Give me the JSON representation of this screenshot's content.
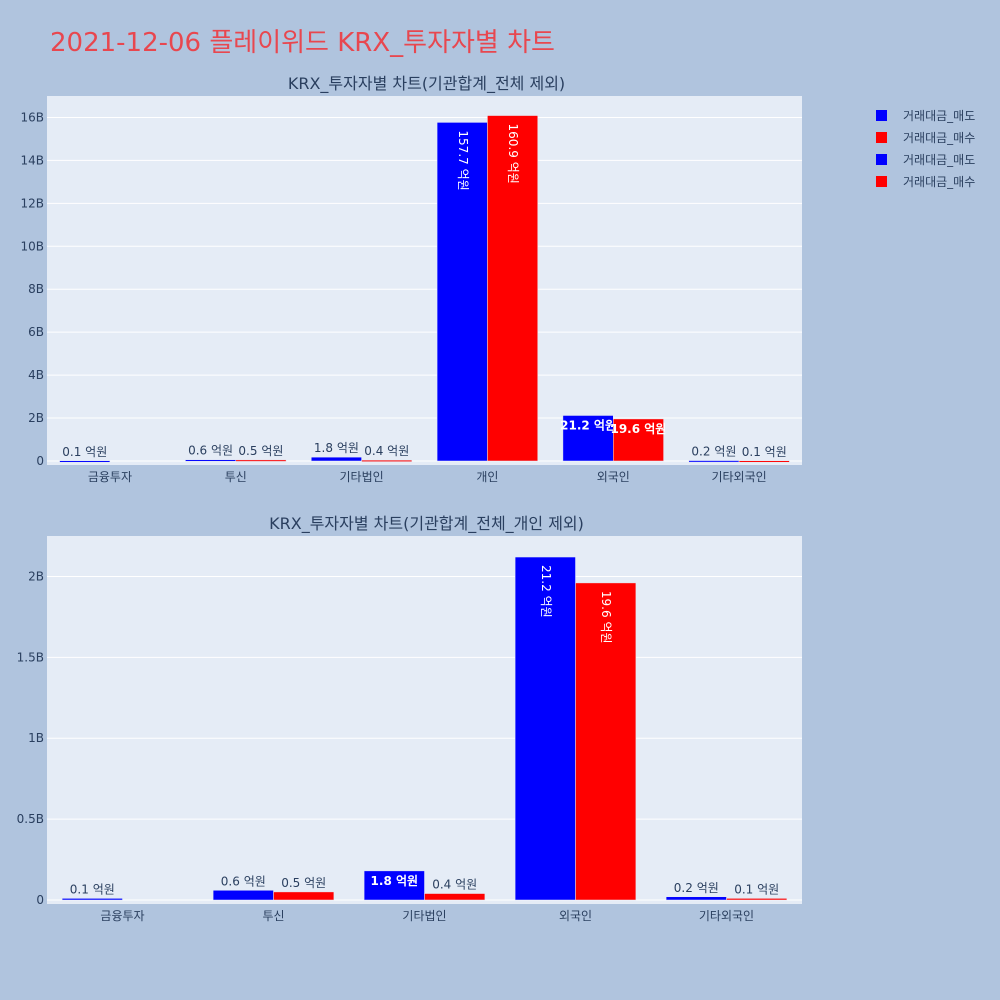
{
  "page": {
    "title": "2021-12-06 플레이위드 KRX_투자자별 차트",
    "title_color": "#e8474f",
    "background": "#b0c4de",
    "plot_background": "#e5ecf6"
  },
  "legend": {
    "placement": "top-right",
    "items": [
      {
        "label": "거래대금_매도",
        "color": "#0000ff"
      },
      {
        "label": "거래대금_매수",
        "color": "#ff0000"
      },
      {
        "label": "거래대금_매도",
        "color": "#0000ff"
      },
      {
        "label": "거래대금_매수",
        "color": "#ff0000"
      }
    ]
  },
  "chart_data": [
    {
      "type": "bar",
      "title": "KRX_투자자별 차트(기관합계_전체 제외)",
      "categories": [
        "금융투자",
        "투신",
        "기타법인",
        "개인",
        "외국인",
        "기타외국인"
      ],
      "series": [
        {
          "name": "거래대금_매도",
          "color": "#0000ff",
          "values": [
            10000000,
            60000000,
            180000000,
            15770000000,
            2120000000,
            20000000
          ],
          "labels": [
            "0.1 억원",
            "0.6 억원",
            "1.8 억원",
            "157.7 억원",
            "21.2 억원",
            "0.2 억원"
          ]
        },
        {
          "name": "거래대금_매수",
          "color": "#ff0000",
          "values": [
            0,
            50000000,
            40000000,
            16090000000,
            1960000000,
            10000000
          ],
          "labels": [
            "",
            "0.5 억원",
            "0.4 억원",
            "160.9 억원",
            "19.6 억원",
            "0.1 억원"
          ]
        }
      ],
      "ylim": [
        0,
        17000000000
      ],
      "yticks": [
        0,
        2000000000,
        4000000000,
        6000000000,
        8000000000,
        10000000000,
        12000000000,
        14000000000,
        16000000000
      ],
      "ytick_labels": [
        "0",
        "2B",
        "4B",
        "6B",
        "8B",
        "10B",
        "12B",
        "14B",
        "16B"
      ],
      "grid": true
    },
    {
      "type": "bar",
      "title": "KRX_투자자별 차트(기관합계_전체_개인 제외)",
      "categories": [
        "금융투자",
        "투신",
        "기타법인",
        "외국인",
        "기타외국인"
      ],
      "series": [
        {
          "name": "거래대금_매도",
          "color": "#0000ff",
          "values": [
            10000000,
            60000000,
            180000000,
            2120000000,
            20000000
          ],
          "labels": [
            "0.1 억원",
            "0.6 억원",
            "1.8 억원",
            "21.2 억원",
            "0.2 억원"
          ]
        },
        {
          "name": "거래대금_매수",
          "color": "#ff0000",
          "values": [
            0,
            50000000,
            40000000,
            1960000000,
            10000000
          ],
          "labels": [
            "",
            "0.5 억원",
            "0.4 억원",
            "19.6 억원",
            "0.1 억원"
          ]
        }
      ],
      "ylim": [
        0,
        2250000000
      ],
      "yticks": [
        0,
        500000000,
        1000000000,
        1500000000,
        2000000000
      ],
      "ytick_labels": [
        "0",
        "0.5B",
        "1B",
        "1.5B",
        "2B"
      ],
      "grid": true
    }
  ]
}
